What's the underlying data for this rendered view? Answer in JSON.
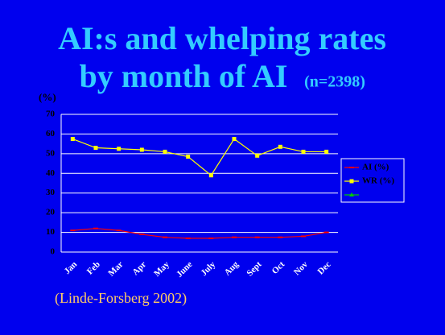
{
  "chart_data": {
    "type": "line",
    "title": "AI:s and whelping rates",
    "subtitle": "by month of AI",
    "title_note": "(n=2398)",
    "y_label": "(%)",
    "source": "(Linde-Forsberg 2002)",
    "categories": [
      "Jan",
      "Feb",
      "Mar",
      "Apr",
      "May",
      "June",
      "July",
      "Aug",
      "Sept",
      "Oct",
      "Nov",
      "Dec"
    ],
    "series": [
      {
        "name": "AI (%)",
        "color": "#ff0000",
        "values": [
          11,
          12,
          11,
          9,
          7.5,
          7,
          7,
          7.5,
          7.5,
          7.5,
          8,
          10
        ]
      },
      {
        "name": "WR (%)",
        "color": "#ffff00",
        "values": [
          57.5,
          53,
          52.5,
          52,
          51,
          48.5,
          39,
          57.5,
          49,
          53.5,
          51,
          51
        ]
      },
      {
        "color": "#00cc00",
        "values": [
          null,
          null,
          null,
          null,
          null,
          null,
          null,
          null,
          null,
          null,
          null,
          null
        ]
      }
    ],
    "ylim": [
      0,
      70
    ],
    "yticks": [
      0,
      10,
      20,
      30,
      40,
      50,
      60,
      70
    ],
    "grid": true,
    "legend": "right"
  }
}
